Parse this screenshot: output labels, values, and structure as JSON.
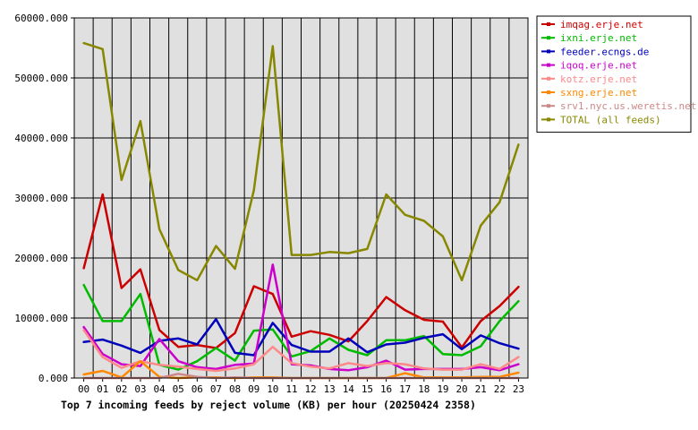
{
  "chart_data": {
    "type": "line",
    "title": "Top 7 incoming feeds by reject volume (KB) per hour (20250424 2358)",
    "categories": [
      "00",
      "01",
      "02",
      "03",
      "04",
      "05",
      "06",
      "07",
      "08",
      "09",
      "10",
      "11",
      "12",
      "13",
      "14",
      "15",
      "16",
      "17",
      "18",
      "19",
      "20",
      "21",
      "22",
      "23"
    ],
    "ylim": [
      0,
      60000
    ],
    "yticks": [
      "0.000",
      "10000.000",
      "20000.000",
      "30000.000",
      "40000.000",
      "50000.000",
      "60000.000"
    ],
    "grid": true,
    "legend_position": "right",
    "series": [
      {
        "name": "imqag.erje.net",
        "color": "#cc0000",
        "values": [
          18300,
          30600,
          15000,
          18100,
          8000,
          5200,
          5500,
          5000,
          7500,
          15300,
          14000,
          6900,
          7800,
          7200,
          6100,
          9500,
          13500,
          11300,
          9700,
          9400,
          5100,
          9500,
          12000,
          15200
        ]
      },
      {
        "name": "ixni.erje.net",
        "color": "#00bb00",
        "values": [
          15500,
          9500,
          9500,
          14000,
          2200,
          1400,
          2800,
          5000,
          2900,
          7900,
          8100,
          3600,
          4500,
          6600,
          4700,
          3800,
          6300,
          6300,
          7000,
          4000,
          3800,
          5300,
          9500,
          12800
        ]
      },
      {
        "name": "feeder.ecngs.de",
        "color": "#0000bb",
        "values": [
          6000,
          6400,
          5400,
          4200,
          6200,
          6600,
          5600,
          9800,
          4200,
          3800,
          9200,
          5500,
          4400,
          4400,
          6600,
          4300,
          5600,
          5900,
          6700,
          7300,
          4800,
          7100,
          5800,
          4900
        ]
      },
      {
        "name": "iqoq.erje.net",
        "color": "#cc00cc",
        "values": [
          8500,
          4000,
          2300,
          2000,
          6500,
          2800,
          1800,
          1500,
          2200,
          2400,
          18900,
          2300,
          2100,
          1500,
          1300,
          1800,
          2900,
          1400,
          1500,
          1500,
          1500,
          1800,
          1300,
          2300
        ]
      },
      {
        "name": "kotz.erje.net",
        "color": "#ff8888",
        "values": [
          8000,
          3500,
          1700,
          2800,
          2200,
          1900,
          1500,
          1200,
          1600,
          2300,
          5200,
          2500,
          1900,
          1600,
          2500,
          2000,
          2500,
          2300,
          1600,
          1400,
          1400,
          2300,
          1500,
          3500
        ]
      },
      {
        "name": "sxng.erje.net",
        "color": "#ff8800",
        "values": [
          600,
          1200,
          100,
          2800,
          200,
          0,
          100,
          100,
          0,
          100,
          100,
          0,
          0,
          0,
          0,
          0,
          0,
          800,
          100,
          100,
          100,
          200,
          200,
          900
        ]
      },
      {
        "name": "srv1.nyc.us.weretis.net",
        "color": "#cc8888",
        "values": [
          0,
          0,
          0,
          0,
          0,
          700,
          200,
          0,
          100,
          0,
          0,
          0,
          0,
          0,
          0,
          0,
          0,
          0,
          0,
          0,
          0,
          0,
          0,
          0
        ]
      },
      {
        "name": "TOTAL (all feeds)",
        "color": "#888800",
        "values": [
          55800,
          54800,
          33000,
          42800,
          24800,
          18000,
          16300,
          22000,
          18200,
          31300,
          55300,
          20500,
          20500,
          21000,
          20800,
          21500,
          30600,
          27200,
          26200,
          23600,
          16300,
          25400,
          29300,
          38900
        ]
      }
    ]
  }
}
